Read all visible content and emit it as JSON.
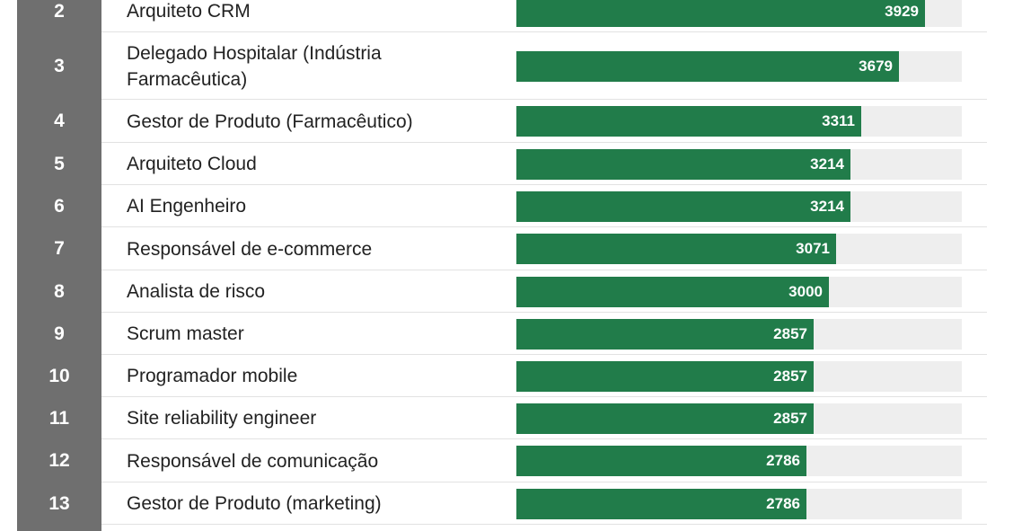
{
  "chart_data": {
    "type": "bar",
    "orientation": "horizontal",
    "xlim": [
      0,
      4280
    ],
    "colors": {
      "bar": "#217c4a",
      "track": "#eeeeee",
      "rank": "#6f6f6f"
    },
    "rows": [
      {
        "rank": "2",
        "label": "Arquiteto CRM",
        "value": 3929
      },
      {
        "rank": "3",
        "label": "Delegado Hospitalar (Indústria Farmacêutica)",
        "value": 3679
      },
      {
        "rank": "4",
        "label": "Gestor de Produto (Farmacêutico)",
        "value": 3311
      },
      {
        "rank": "5",
        "label": "Arquiteto Cloud",
        "value": 3214
      },
      {
        "rank": "6",
        "label": "AI Engenheiro",
        "value": 3214
      },
      {
        "rank": "7",
        "label": "Responsável de e-commerce",
        "value": 3071
      },
      {
        "rank": "8",
        "label": "Analista de risco",
        "value": 3000
      },
      {
        "rank": "9",
        "label": "Scrum master",
        "value": 2857
      },
      {
        "rank": "10",
        "label": "Programador mobile",
        "value": 2857
      },
      {
        "rank": "11",
        "label": "Site reliability engineer",
        "value": 2857
      },
      {
        "rank": "12",
        "label": "Responsável de comunicação",
        "value": 2786
      },
      {
        "rank": "13",
        "label": "Gestor de Produto (marketing)",
        "value": 2786
      }
    ]
  }
}
